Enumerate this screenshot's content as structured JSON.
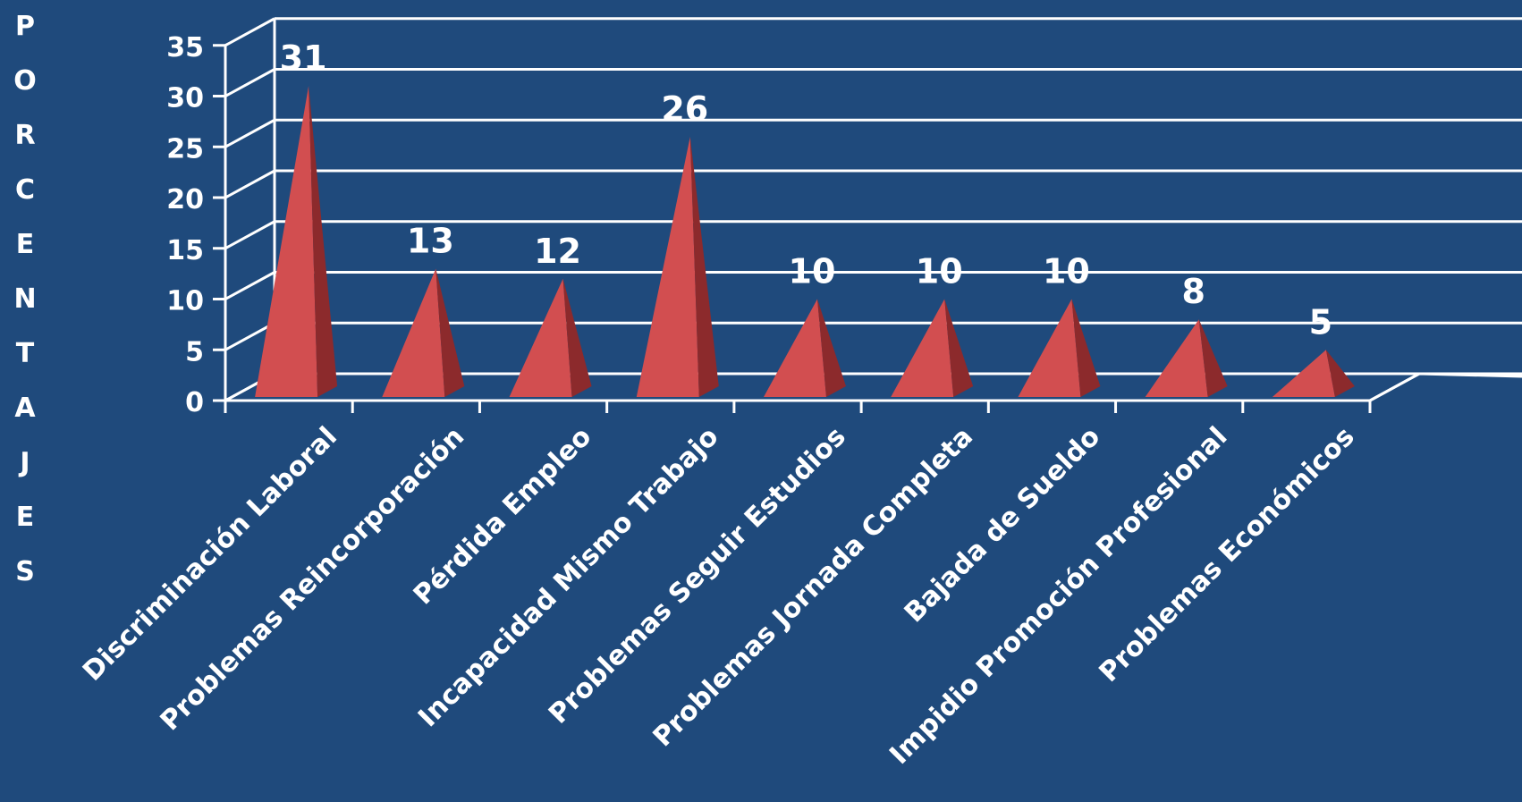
{
  "chart_data": {
    "type": "bar",
    "style": "3d-pyramid",
    "ylabel": "PORCENTAJES",
    "xlabel": "",
    "title": "",
    "ylim": [
      0,
      35
    ],
    "yticks": [
      0,
      5,
      10,
      15,
      20,
      25,
      30,
      35
    ],
    "grid": true,
    "categories": [
      "Discriminación Laboral",
      "Problemas Reincorporación",
      "Pérdida Empleo",
      "Incapacidad Mismo Trabajo",
      "Problemas Seguir Estudios",
      "Problemas Jornada Completa",
      "Bajada de Sueldo",
      "Impidio Promoción Profesional",
      "Problemas Económicos"
    ],
    "values": [
      31,
      13,
      12,
      26,
      10,
      10,
      10,
      8,
      5
    ],
    "data_labels": [
      "31",
      "13",
      "12",
      "26",
      "10",
      "10",
      "10",
      "8",
      "5"
    ]
  },
  "colors": {
    "background": "#1f4a7c",
    "grid": "#ffffff",
    "bar_front": "#d24e50",
    "bar_side": "#8c2a2c",
    "text": "#ffffff"
  }
}
